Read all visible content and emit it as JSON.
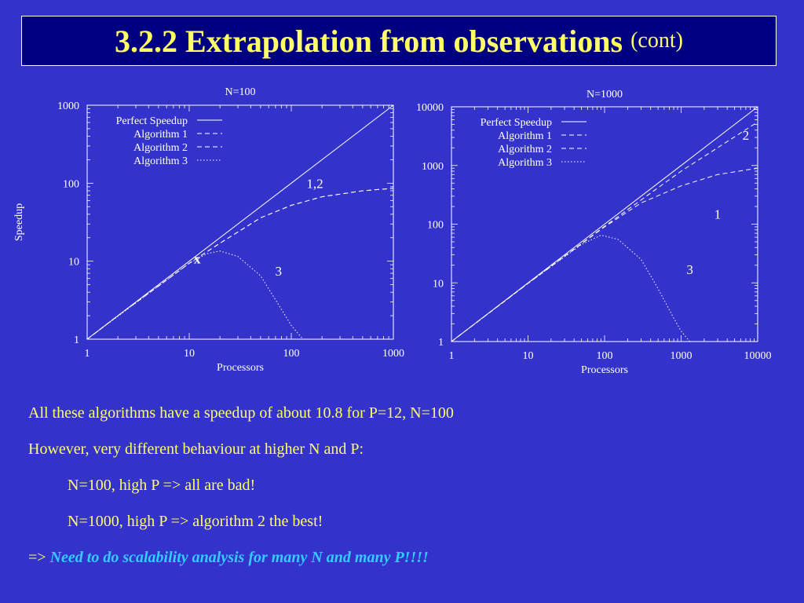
{
  "header": {
    "title": "3.2.2 Extrapolation from observations",
    "subtitle": "(cont)"
  },
  "colors": {
    "background": "#3333cc",
    "title_box": "#000080",
    "title_text": "#ffff66",
    "body_text": "#ffff66",
    "emphasis": "#33ccff",
    "plot_lines": "#ffffff"
  },
  "chart_data": [
    {
      "type": "line",
      "title": "N=100",
      "xlabel": "Processors",
      "ylabel": "Speedup",
      "xscale": "log",
      "yscale": "log",
      "xlim": [
        1,
        1000
      ],
      "ylim": [
        1,
        1000
      ],
      "xticks": [
        "1",
        "10",
        "100",
        "1000"
      ],
      "yticks": [
        "1",
        "10",
        "100",
        "1000"
      ],
      "legend_position": "top-left",
      "series": [
        {
          "name": "Perfect Speedup",
          "style": "solid",
          "x": [
            1,
            10,
            100,
            1000
          ],
          "y": [
            1,
            10,
            100,
            1000
          ]
        },
        {
          "name": "Algorithm 1",
          "style": "dashed",
          "x": [
            1,
            2,
            5,
            10,
            20,
            50,
            100,
            200,
            500,
            1000
          ],
          "y": [
            1,
            2,
            4.8,
            9.4,
            17,
            36,
            52,
            67,
            80,
            86
          ]
        },
        {
          "name": "Algorithm 2",
          "style": "dashed",
          "x": [
            1,
            2,
            5,
            10,
            20,
            50,
            100,
            200,
            500,
            1000
          ],
          "y": [
            1,
            2,
            4.8,
            9.4,
            17,
            36,
            52,
            67,
            80,
            86
          ]
        },
        {
          "name": "Algorithm 3",
          "style": "dotted",
          "x": [
            1,
            5,
            10,
            15,
            20,
            30,
            50,
            70,
            100,
            130
          ],
          "y": [
            1,
            4.8,
            9.4,
            12.5,
            13.5,
            11.5,
            6.5,
            3.2,
            1.5,
            1.0
          ]
        }
      ],
      "annotations": [
        {
          "text": "1,2",
          "x": 170,
          "y": 100
        },
        {
          "text": "3",
          "x": 75,
          "y": 7.5
        },
        {
          "text": "x",
          "x": 12,
          "y": 10.8
        }
      ]
    },
    {
      "type": "line",
      "title": "N=1000",
      "xlabel": "Processors",
      "ylabel": "",
      "xscale": "log",
      "yscale": "log",
      "xlim": [
        1,
        10000
      ],
      "ylim": [
        1,
        10000
      ],
      "xticks": [
        "1",
        "10",
        "100",
        "1000",
        "10000"
      ],
      "yticks": [
        "1",
        "10",
        "100",
        "1000",
        "10000"
      ],
      "legend_position": "top-left",
      "series": [
        {
          "name": "Perfect Speedup",
          "style": "solid",
          "x": [
            1,
            10,
            100,
            1000,
            10000
          ],
          "y": [
            1,
            10,
            100,
            1000,
            10000
          ]
        },
        {
          "name": "Algorithm 1",
          "style": "dashed",
          "x": [
            1,
            10,
            100,
            300,
            1000,
            3000,
            10000
          ],
          "y": [
            1,
            9.8,
            90,
            230,
            450,
            700,
            900
          ]
        },
        {
          "name": "Algorithm 2",
          "style": "dashed",
          "x": [
            1,
            10,
            100,
            1000,
            10000
          ],
          "y": [
            1,
            9.8,
            92,
            800,
            5500
          ]
        },
        {
          "name": "Algorithm 3",
          "style": "dotted",
          "x": [
            1,
            10,
            50,
            90,
            150,
            300,
            500,
            800,
            1000,
            1300
          ],
          "y": [
            1,
            9.8,
            45,
            65,
            55,
            25,
            8,
            2.5,
            1.5,
            1.0
          ]
        }
      ],
      "annotations": [
        {
          "text": "2",
          "x": 7000,
          "y": 3300
        },
        {
          "text": "1",
          "x": 3000,
          "y": 150
        },
        {
          "text": "3",
          "x": 1300,
          "y": 17
        }
      ]
    }
  ],
  "body": {
    "line1": "All these algorithms have a speedup of about 10.8 for P=12, N=100",
    "line2": "However, very different behaviour at higher N and P:",
    "line3": "N=100, high P => all are bad!",
    "line4": "N=1000, high P => algorithm 2 the best!",
    "line5_prefix": "=>",
    "line5_emphasis": "Need to do scalability analysis for many N and many P!!!!"
  }
}
